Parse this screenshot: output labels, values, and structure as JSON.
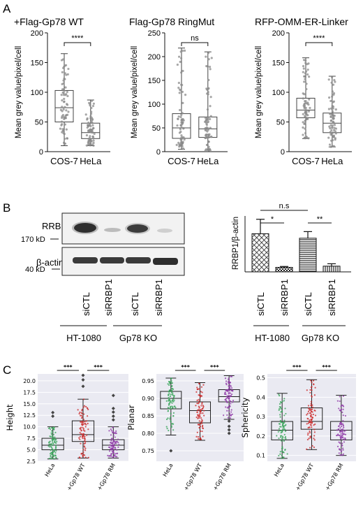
{
  "panel_labels": {
    "a": "A",
    "b": "B",
    "c": "C"
  },
  "blot": {
    "band_label": "RRBP",
    "ref_label": "β-actin",
    "marker_top": "170 kD",
    "marker_bottom": "40 kD",
    "lanes": [
      "siCTL",
      "siRRBP1",
      "siCTL",
      "siRRBP1"
    ],
    "groups": [
      "HT-1080",
      "Gp78 KO"
    ]
  },
  "chart_data": [
    {
      "type": "box",
      "id": "A1",
      "title": "+Flag-Gp78 WT",
      "ylabel": "Mean grey value/pixel/cell",
      "ylim": [
        0,
        200
      ],
      "yticks": [
        0,
        50,
        100,
        150,
        200
      ],
      "categories": [
        "COS-7",
        "HeLa"
      ],
      "boxes": [
        {
          "min": 10,
          "q1": 50,
          "median": 74,
          "q3": 103,
          "max": 165
        },
        {
          "min": 10,
          "q1": 22,
          "median": 32,
          "q3": 48,
          "max": 87
        }
      ],
      "significance": "****"
    },
    {
      "type": "box",
      "id": "A2",
      "title": "Flag-Gp78 RingMut",
      "ylabel": "Mean grey value/pixel/cell",
      "ylim": [
        0,
        250
      ],
      "yticks": [
        0,
        50,
        100,
        150,
        200,
        250
      ],
      "categories": [
        "COS-7",
        "HeLa"
      ],
      "boxes": [
        {
          "min": 5,
          "q1": 28,
          "median": 50,
          "q3": 80,
          "max": 218
        },
        {
          "min": 3,
          "q1": 30,
          "median": 48,
          "q3": 73,
          "max": 210
        }
      ],
      "significance": "ns"
    },
    {
      "type": "box",
      "id": "A3",
      "title": "RFP-OMM-ER-Linker",
      "ylabel": "Mean grey value/pixel/cell",
      "ylim": [
        0,
        200
      ],
      "yticks": [
        0,
        50,
        100,
        150,
        200
      ],
      "categories": [
        "COS-7",
        "HeLa"
      ],
      "boxes": [
        {
          "min": 22,
          "q1": 57,
          "median": 70,
          "q3": 90,
          "max": 158
        },
        {
          "min": 8,
          "q1": 32,
          "median": 48,
          "q3": 65,
          "max": 127
        }
      ],
      "significance": "****"
    },
    {
      "type": "bar",
      "id": "B",
      "ylabel": "RRBP1/β-actin",
      "ylim": [
        0,
        2.0
      ],
      "categories": [
        "siCTL",
        "siRRBP1",
        "siCTL",
        "siRRBP1"
      ],
      "groups": [
        "HT-1080",
        "Gp78 KO"
      ],
      "values": [
        1.27,
        0.15,
        1.12,
        0.19
      ],
      "errors": [
        0.48,
        0.03,
        0.22,
        0.08
      ],
      "significance": [
        {
          "pair": [
            0,
            1
          ],
          "label": "*"
        },
        {
          "pair": [
            2,
            3
          ],
          "label": "**"
        },
        {
          "pair": [
            0,
            2
          ],
          "label": "n.s"
        }
      ]
    },
    {
      "type": "box",
      "id": "C1",
      "ylabel": "Height",
      "ylim": [
        2.5,
        21.5
      ],
      "yticks": [
        2.5,
        5.0,
        7.5,
        10.0,
        12.5,
        15.0,
        17.5,
        20.0
      ],
      "categories": [
        "HeLa",
        "+Gp78 WT",
        "+Gp78 RM"
      ],
      "boxes": [
        {
          "min": 3.0,
          "q1": 5.0,
          "median": 6.0,
          "q3": 7.5,
          "max": 10.0,
          "outliers": [
            12.3,
            13.1
          ]
        },
        {
          "min": 3.2,
          "q1": 6.8,
          "median": 8.3,
          "q3": 11.3,
          "max": 16.0,
          "outliers": [
            18.8,
            20.2,
            21.2
          ]
        },
        {
          "min": 3.2,
          "q1": 5.0,
          "median": 6.0,
          "q3": 7.2,
          "max": 10.0,
          "outliers": [
            11.5,
            12.3,
            13.2,
            14.0,
            16.8
          ]
        }
      ],
      "significance": [
        {
          "pair": [
            0,
            1
          ],
          "label": "***"
        },
        {
          "pair": [
            1,
            2
          ],
          "label": "***"
        }
      ]
    },
    {
      "type": "box",
      "id": "C2",
      "ylabel": "Planar",
      "ylim": [
        0.72,
        0.97
      ],
      "yticks": [
        0.75,
        0.8,
        0.85,
        0.9,
        0.95
      ],
      "categories": [
        "HeLa",
        "+Gp78 WT",
        "+Gp78 RM"
      ],
      "boxes": [
        {
          "min": 0.795,
          "q1": 0.87,
          "median": 0.9,
          "q3": 0.92,
          "max": 0.958,
          "outliers": [
            0.75
          ]
        },
        {
          "min": 0.78,
          "q1": 0.83,
          "median": 0.865,
          "q3": 0.89,
          "max": 0.945
        },
        {
          "min": 0.84,
          "q1": 0.89,
          "median": 0.905,
          "q3": 0.925,
          "max": 0.965,
          "outliers": [
            0.835,
            0.82,
            0.81,
            0.8
          ]
        }
      ],
      "significance": [
        {
          "pair": [
            0,
            1
          ],
          "label": "***"
        },
        {
          "pair": [
            1,
            2
          ],
          "label": "***"
        }
      ]
    },
    {
      "type": "box",
      "id": "C3",
      "ylabel": "Sphericity",
      "ylim": [
        0.07,
        0.52
      ],
      "yticks": [
        0.1,
        0.2,
        0.3,
        0.4,
        0.5
      ],
      "categories": [
        "HeLa",
        "+Gp78 WT",
        "+Gp78 RM"
      ],
      "boxes": [
        {
          "min": 0.085,
          "q1": 0.18,
          "median": 0.23,
          "q3": 0.275,
          "max": 0.42
        },
        {
          "min": 0.13,
          "q1": 0.235,
          "median": 0.275,
          "q3": 0.345,
          "max": 0.49
        },
        {
          "min": 0.1,
          "q1": 0.18,
          "median": 0.23,
          "q3": 0.275,
          "max": 0.41
        }
      ],
      "significance": [
        {
          "pair": [
            0,
            1
          ],
          "label": "***"
        },
        {
          "pair": [
            1,
            2
          ],
          "label": "***"
        }
      ]
    }
  ]
}
